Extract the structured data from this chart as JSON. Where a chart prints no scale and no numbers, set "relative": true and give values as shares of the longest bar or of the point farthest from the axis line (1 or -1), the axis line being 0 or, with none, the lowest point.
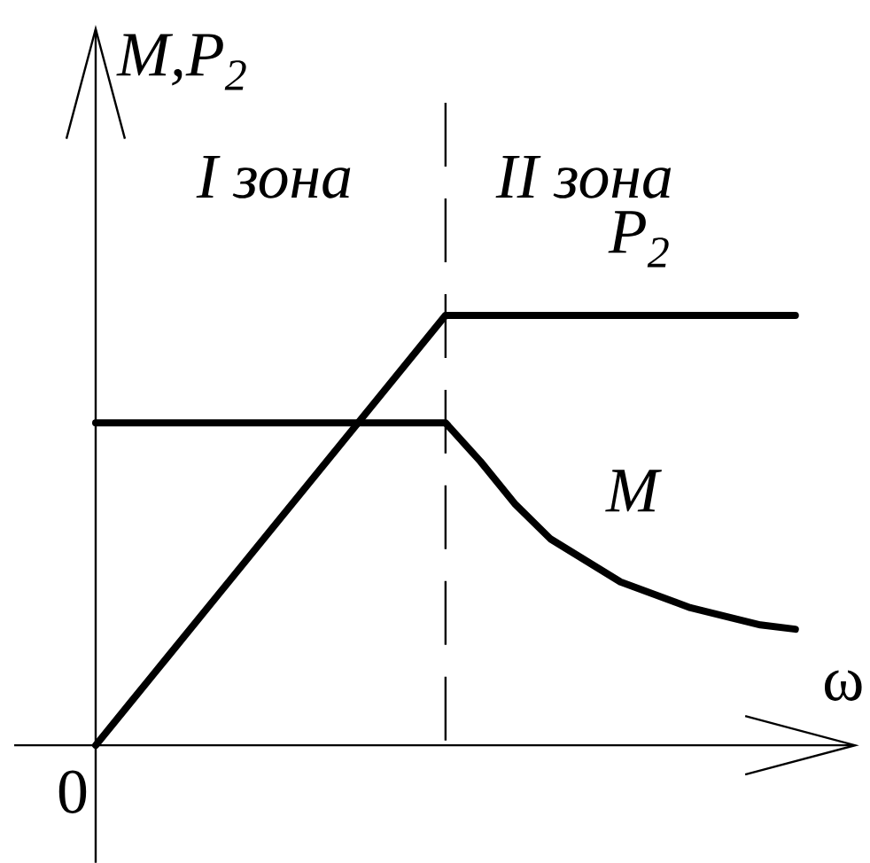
{
  "chart_data": {
    "type": "line",
    "relative": true,
    "ylabel": "M,P$_{2}$",
    "xlabel": "ω",
    "categories": [
      null,
      null,
      null,
      null,
      null,
      null,
      null,
      null,
      null,
      null,
      null,
      null,
      null,
      null,
      null,
      null,
      null,
      null,
      null,
      null,
      null
    ],
    "series": [
      {
        "name": "P$_{2}$",
        "color": "#000000",
        "values": [
          0,
          0.1,
          0.2,
          0.3,
          0.4,
          0.5,
          0.6,
          0.7,
          0.8,
          0.9,
          1,
          1,
          1,
          1,
          1,
          1,
          1,
          1,
          1,
          1,
          1
        ]
      },
      {
        "name": "M",
        "color": "#000000",
        "values": [
          0.75,
          0.75,
          0.75,
          0.75,
          0.75,
          0.75,
          0.75,
          0.75,
          0.75,
          0.75,
          0.75,
          0.66,
          0.56,
          0.48,
          0.43,
          0.38,
          0.35,
          0.32,
          0.3,
          0.28,
          0.27
        ]
      }
    ],
    "annotations": [
      "I зона",
      "II зона",
      "0"
    ],
    "legend": false,
    "marker": "none",
    "line_style": "solid"
  }
}
